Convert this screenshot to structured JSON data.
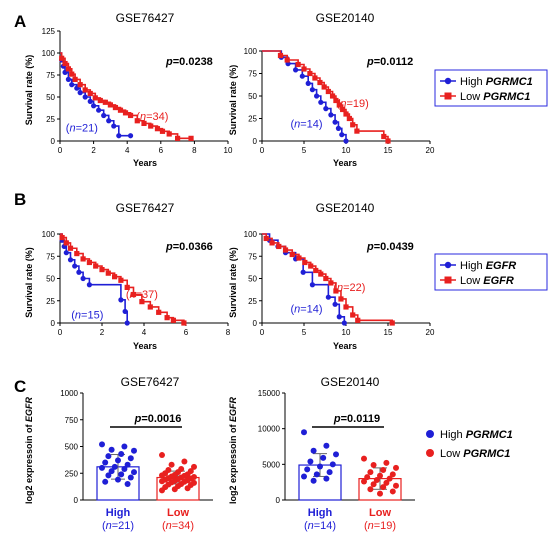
{
  "colors": {
    "high": "#1f1fd6",
    "low": "#e8201f",
    "axis": "#000000"
  },
  "panels": [
    {
      "letter": "A"
    },
    {
      "letter": "B"
    },
    {
      "letter": "C"
    }
  ],
  "chart_data": [
    {
      "type": "line",
      "panel": "A",
      "title": "GSE76427",
      "xlabel": "Years",
      "ylabel": "Survival rate (%)",
      "xlim": [
        0,
        10
      ],
      "ylim": [
        0,
        125
      ],
      "xticks": [
        0,
        2,
        4,
        6,
        8,
        10
      ],
      "yticks": [
        0,
        25,
        50,
        75,
        100,
        125
      ],
      "pvalue": "0.0238",
      "annotations": [
        {
          "series": "high",
          "text": "n=21",
          "at": [
            1.3,
            11
          ]
        },
        {
          "series": "low",
          "text": "n=34",
          "at": [
            5.5,
            24
          ]
        }
      ],
      "series": [
        {
          "key": "high",
          "x": [
            0,
            0.1,
            0.2,
            0.3,
            0.5,
            0.7,
            1.0,
            1.2,
            1.5,
            1.8,
            2.0,
            2.3,
            2.6,
            2.9,
            3.2,
            3.5,
            4.2
          ],
          "y": [
            100,
            92,
            85,
            78,
            70,
            64,
            60,
            55,
            50,
            45,
            40,
            35,
            29,
            23,
            17,
            6,
            6
          ]
        },
        {
          "key": "low",
          "x": [
            0,
            0.1,
            0.3,
            0.5,
            0.7,
            0.9,
            1.2,
            1.5,
            1.8,
            2.1,
            2.4,
            2.7,
            3.0,
            3.3,
            3.6,
            3.9,
            4.2,
            4.6,
            5.0,
            5.4,
            5.8,
            6.1,
            6.5,
            7.0,
            7.8
          ],
          "y": [
            100,
            94,
            88,
            82,
            76,
            70,
            64,
            58,
            54,
            49,
            46,
            44,
            41,
            38,
            35,
            32,
            29,
            23,
            20,
            17,
            14,
            11,
            8,
            3,
            3
          ]
        }
      ]
    },
    {
      "type": "line",
      "panel": "A",
      "title": "GSE20140",
      "xlabel": "Years",
      "ylabel": "Survival rate (%)",
      "xlim": [
        0,
        20
      ],
      "ylim": [
        0,
        100
      ],
      "xticks": [
        0,
        5,
        10,
        15,
        20
      ],
      "yticks": [
        0,
        25,
        50,
        75,
        100
      ],
      "pvalue": "0.0112",
      "annotations": [
        {
          "series": "high",
          "text": "n=14",
          "at": [
            5.3,
            15
          ]
        },
        {
          "series": "low",
          "text": "n=19",
          "at": [
            10.8,
            38
          ]
        }
      ],
      "legend": {
        "high": "High",
        "low": "Low",
        "gene": "PGRMC1",
        "position": "right"
      },
      "series": [
        {
          "key": "high",
          "x": [
            0,
            2.3,
            3.1,
            4.0,
            4.8,
            5.5,
            6.0,
            6.5,
            7.0,
            7.6,
            8.2,
            8.7,
            9.1,
            9.5,
            10.0
          ],
          "y": [
            100,
            93,
            86,
            79,
            72,
            64,
            57,
            50,
            43,
            36,
            29,
            21,
            14,
            7,
            0
          ]
        },
        {
          "key": "low",
          "x": [
            0,
            2.2,
            3.0,
            4.3,
            5.0,
            5.7,
            6.3,
            6.9,
            7.4,
            7.9,
            8.4,
            8.8,
            9.2,
            9.6,
            10.0,
            10.4,
            10.8,
            11.3,
            14.5,
            15.0
          ],
          "y": [
            100,
            95,
            90,
            85,
            80,
            75,
            70,
            65,
            60,
            55,
            50,
            45,
            40,
            35,
            30,
            25,
            18,
            11,
            5,
            0
          ]
        }
      ]
    },
    {
      "type": "line",
      "panel": "B",
      "title": "GSE76427",
      "xlabel": "Years",
      "ylabel": "Survival rate (%)",
      "xlim": [
        0,
        8
      ],
      "ylim": [
        0,
        100
      ],
      "xticks": [
        0,
        2,
        4,
        6,
        8
      ],
      "yticks": [
        0,
        25,
        50,
        75,
        100
      ],
      "pvalue": "0.0366",
      "annotations": [
        {
          "series": "high",
          "text": "n=15",
          "at": [
            1.3,
            5
          ]
        },
        {
          "series": "low",
          "text": "n=37",
          "at": [
            3.9,
            28
          ]
        }
      ],
      "series": [
        {
          "key": "high",
          "x": [
            0,
            0.1,
            0.2,
            0.3,
            0.5,
            0.7,
            0.9,
            1.1,
            1.4,
            2.9,
            3.1,
            3.2
          ],
          "y": [
            100,
            93,
            86,
            79,
            71,
            64,
            57,
            50,
            43,
            26,
            13,
            0
          ]
        },
        {
          "key": "low",
          "x": [
            0,
            0.1,
            0.3,
            0.5,
            0.8,
            1.1,
            1.4,
            1.7,
            2.0,
            2.3,
            2.6,
            2.9,
            3.2,
            3.5,
            3.9,
            4.3,
            4.7,
            5.1,
            5.4,
            5.9
          ],
          "y": [
            100,
            96,
            90,
            84,
            78,
            72,
            68,
            64,
            60,
            56,
            52,
            48,
            40,
            32,
            24,
            18,
            12,
            6,
            3,
            0
          ]
        }
      ]
    },
    {
      "type": "line",
      "panel": "B",
      "title": "GSE20140",
      "xlabel": "Years",
      "ylabel": "Survival rate (%)",
      "xlim": [
        0,
        20
      ],
      "ylim": [
        0,
        100
      ],
      "xticks": [
        0,
        5,
        10,
        15,
        20
      ],
      "yticks": [
        0,
        25,
        50,
        75,
        100
      ],
      "pvalue": "0.0439",
      "annotations": [
        {
          "series": "high",
          "text": "n=14",
          "at": [
            5.3,
            12
          ]
        },
        {
          "series": "low",
          "text": "n=22",
          "at": [
            10.4,
            36
          ]
        }
      ],
      "legend": {
        "high": "High",
        "low": "Low",
        "gene": "EGFR",
        "position": "right"
      },
      "series": [
        {
          "key": "high",
          "x": [
            0,
            0.9,
            1.9,
            2.8,
            4.0,
            4.9,
            6.0,
            7.9,
            8.7,
            9.2,
            9.8
          ],
          "y": [
            100,
            93,
            86,
            79,
            72,
            57,
            43,
            29,
            21,
            7,
            0
          ]
        },
        {
          "key": "low",
          "x": [
            0,
            0.5,
            1.2,
            2.0,
            2.8,
            3.6,
            4.4,
            5.1,
            5.8,
            6.4,
            7.0,
            7.6,
            8.2,
            8.8,
            9.4,
            10.0,
            10.8,
            11.4,
            15.5
          ],
          "y": [
            100,
            95,
            90,
            86,
            82,
            77,
            73,
            68,
            64,
            59,
            55,
            50,
            45,
            36,
            27,
            18,
            9,
            3,
            0
          ]
        }
      ]
    },
    {
      "type": "bar",
      "panel": "C",
      "title": "GSE76427",
      "ylabel": "log2 expressoin of EGFR",
      "ylim": [
        0,
        1000
      ],
      "yticks": [
        0,
        250,
        500,
        750,
        1000
      ],
      "pvalue": "0.0016",
      "categories": [
        {
          "key": "high",
          "label": "High",
          "n": "n=21",
          "mean": 310,
          "sd": 115
        },
        {
          "key": "low",
          "label": "Low",
          "n": "n=34",
          "mean": 210,
          "sd": 60
        }
      ],
      "points": {
        "high": [
          520,
          500,
          470,
          460,
          430,
          410,
          390,
          370,
          350,
          330,
          310,
          300,
          290,
          270,
          260,
          240,
          230,
          210,
          190,
          170,
          150
        ],
        "low": [
          420,
          360,
          330,
          310,
          290,
          280,
          270,
          260,
          250,
          240,
          235,
          230,
          225,
          220,
          215,
          210,
          205,
          200,
          195,
          190,
          185,
          180,
          175,
          170,
          165,
          160,
          150,
          145,
          140,
          130,
          120,
          110,
          100,
          90
        ]
      }
    },
    {
      "type": "bar",
      "panel": "C",
      "title": "GSE20140",
      "ylabel": "log2 expressoin of EGFR",
      "ylim": [
        0,
        15000
      ],
      "yticks": [
        0,
        5000,
        10000,
        15000
      ],
      "pvalue": "0.0119",
      "legend": {
        "high": "High",
        "low": "Low",
        "gene": "PGRMC1",
        "position": "right"
      },
      "categories": [
        {
          "key": "high",
          "label": "High",
          "n": "n=14",
          "mean": 4900,
          "sd": 1600
        },
        {
          "key": "low",
          "label": "Low",
          "n": "n=19",
          "mean": 3000,
          "sd": 1500
        }
      ],
      "points": {
        "high": [
          9500,
          7600,
          6900,
          6400,
          5900,
          5400,
          5000,
          4700,
          4300,
          3900,
          3600,
          3300,
          3000,
          2700
        ],
        "low": [
          5800,
          5200,
          4900,
          4500,
          4200,
          3900,
          3600,
          3400,
          3200,
          3000,
          2800,
          2600,
          2400,
          2200,
          2000,
          1800,
          1500,
          1200,
          900
        ]
      }
    }
  ]
}
